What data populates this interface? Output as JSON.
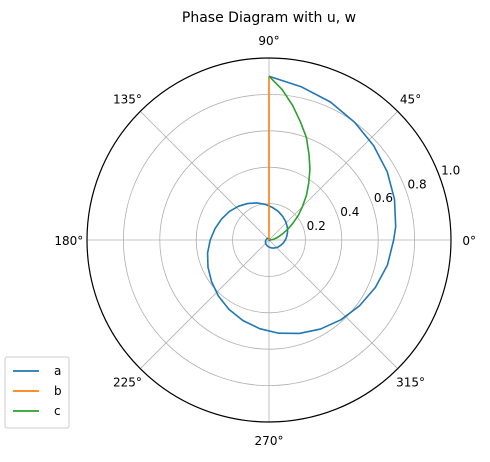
{
  "chart_data": {
    "type": "line",
    "projection": "polar",
    "title": "Phase Diagram with u, w",
    "theta_unit": "degrees",
    "theta_ticks": [
      0,
      45,
      90,
      135,
      180,
      225,
      270,
      315
    ],
    "theta_tick_labels": [
      "0°",
      "45°",
      "90°",
      "135°",
      "180°",
      "225°",
      "270°",
      "315°"
    ],
    "r_ticks": [
      0.2,
      0.4,
      0.6,
      0.8,
      1.0
    ],
    "r_tick_labels": [
      "0.2",
      "0.4",
      "0.6",
      "0.8",
      "1.0"
    ],
    "rlim": [
      0,
      1.0
    ],
    "grid": true,
    "legend_position": "lower-left",
    "series": [
      {
        "name": "a",
        "color": "#1f77b4",
        "theta_deg": [
          90,
          78,
          66,
          54,
          42,
          30,
          18,
          6,
          0,
          -12,
          -24,
          -36,
          -48,
          -60,
          -72,
          -84,
          -96,
          -108,
          -120,
          -132,
          -144,
          -156,
          -168,
          -180,
          -192,
          -204,
          -216,
          -228,
          -240,
          -252,
          -264,
          -276,
          -288,
          -300,
          -312,
          -324,
          -336,
          -348,
          -360,
          -372,
          -384,
          -396,
          -408,
          -420,
          -432,
          -444,
          -456,
          -468,
          -480,
          -492,
          -504,
          -516,
          -528,
          -540,
          -552,
          -564,
          -576,
          -588,
          -600,
          -612,
          -624,
          -636,
          -648,
          -660,
          -672,
          -684,
          -696,
          -708,
          -720,
          -732,
          -744,
          -756,
          -768,
          -780,
          -792,
          -804,
          -816,
          -828,
          -840
        ],
        "r": [
          0.9,
          0.86,
          0.83,
          0.8,
          0.774,
          0.75,
          0.725,
          0.7,
          0.685,
          0.665,
          0.64,
          0.615,
          0.59,
          0.565,
          0.54,
          0.515,
          0.49,
          0.465,
          0.44,
          0.415,
          0.39,
          0.367,
          0.345,
          0.323,
          0.303,
          0.285,
          0.268,
          0.25,
          0.232,
          0.214,
          0.197,
          0.18,
          0.165,
          0.15,
          0.137,
          0.124,
          0.112,
          0.1,
          0.09,
          0.08,
          0.071,
          0.064,
          0.057,
          0.051,
          0.046,
          0.041,
          0.037,
          0.033,
          0.03,
          0.027,
          0.024,
          0.021,
          0.019,
          0.017,
          0.015,
          0.014,
          0.013,
          0.012,
          0.011,
          0.01,
          0.009,
          0.008,
          0.0075,
          0.007,
          0.0065,
          0.006,
          0.0055,
          0.005,
          0.0045,
          0.004,
          0.0035,
          0.003,
          0.0025,
          0.002,
          0.0018,
          0.0016,
          0.0014,
          0.0012,
          0.001
        ]
      },
      {
        "name": "b",
        "color": "#ff7f0e",
        "theta_deg": [
          90,
          90,
          90,
          90,
          90,
          90
        ],
        "r": [
          0.0,
          0.2,
          0.4,
          0.6,
          0.8,
          0.9
        ]
      },
      {
        "name": "c",
        "color": "#2ca02c",
        "theta_deg": [
          90,
          85,
          80,
          75,
          70,
          65,
          60,
          55,
          50,
          45,
          40,
          35,
          30,
          25,
          20,
          15,
          10,
          5,
          0
        ],
        "r": [
          0.9,
          0.83,
          0.75,
          0.67,
          0.6,
          0.52,
          0.45,
          0.38,
          0.32,
          0.26,
          0.21,
          0.16,
          0.12,
          0.085,
          0.06,
          0.04,
          0.025,
          0.015,
          0.008
        ]
      }
    ]
  }
}
